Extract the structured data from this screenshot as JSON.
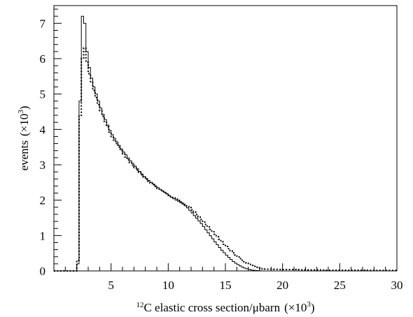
{
  "chart_data": {
    "type": "histogram",
    "title": "",
    "xlabel": {
      "pre_sup": "12",
      "text": "C elastic cross section/μbarn",
      "unit_prefix": "(×10",
      "unit_sup": "3",
      "unit_suffix": ")"
    },
    "ylabel": {
      "text": "events",
      "unit_prefix": "(×10",
      "unit_sup": "3",
      "unit_suffix": ")"
    },
    "xlim": [
      0,
      30
    ],
    "ylim": [
      0,
      7.5
    ],
    "xticks": [
      5,
      10,
      15,
      20,
      25,
      30
    ],
    "yticks": [
      0,
      1,
      2,
      3,
      4,
      5,
      6,
      7
    ],
    "grid": false,
    "legend": "none",
    "bin_width": 0.2,
    "series": [
      {
        "style": "solid",
        "color": "#000000",
        "points": [
          [
            0,
            0
          ],
          [
            2.0,
            0
          ],
          [
            2.1,
            0.2
          ],
          [
            2.2,
            2.4
          ],
          [
            2.3,
            4.8
          ],
          [
            2.4,
            6.9
          ],
          [
            2.5,
            7.2
          ],
          [
            2.6,
            7.2
          ],
          [
            2.7,
            7.0
          ],
          [
            2.8,
            6.6
          ],
          [
            2.9,
            6.2
          ],
          [
            3.0,
            5.9
          ],
          [
            3.2,
            5.6
          ],
          [
            3.4,
            5.3
          ],
          [
            3.6,
            5.1
          ],
          [
            3.8,
            4.9
          ],
          [
            4.0,
            4.7
          ],
          [
            4.2,
            4.5
          ],
          [
            4.4,
            4.35
          ],
          [
            4.6,
            4.2
          ],
          [
            4.8,
            4.05
          ],
          [
            5.0,
            3.9
          ],
          [
            5.2,
            3.8
          ],
          [
            5.4,
            3.7
          ],
          [
            5.6,
            3.6
          ],
          [
            5.8,
            3.5
          ],
          [
            6.0,
            3.4
          ],
          [
            6.3,
            3.28
          ],
          [
            6.6,
            3.15
          ],
          [
            7.0,
            3.0
          ],
          [
            7.4,
            2.85
          ],
          [
            7.8,
            2.7
          ],
          [
            8.2,
            2.58
          ],
          [
            8.6,
            2.48
          ],
          [
            9.0,
            2.38
          ],
          [
            9.4,
            2.28
          ],
          [
            9.8,
            2.2
          ],
          [
            10.2,
            2.1
          ],
          [
            10.6,
            2.02
          ],
          [
            11.0,
            1.95
          ],
          [
            11.4,
            1.87
          ],
          [
            11.8,
            1.75
          ],
          [
            12.2,
            1.6
          ],
          [
            12.6,
            1.45
          ],
          [
            13.0,
            1.3
          ],
          [
            13.4,
            1.12
          ],
          [
            13.8,
            0.95
          ],
          [
            14.2,
            0.78
          ],
          [
            14.6,
            0.62
          ],
          [
            15.0,
            0.48
          ],
          [
            15.4,
            0.35
          ],
          [
            15.8,
            0.24
          ],
          [
            16.2,
            0.16
          ],
          [
            16.6,
            0.09
          ],
          [
            17.0,
            0.05
          ],
          [
            17.4,
            0.02
          ],
          [
            17.8,
            0.01
          ],
          [
            18.2,
            0.0
          ],
          [
            30,
            0
          ]
        ]
      },
      {
        "style": "dotted",
        "color": "#000000",
        "points": [
          [
            0,
            0
          ],
          [
            2.0,
            0
          ],
          [
            2.1,
            0.3
          ],
          [
            2.2,
            2.0
          ],
          [
            2.3,
            4.4
          ],
          [
            2.4,
            5.6
          ],
          [
            2.5,
            6.0
          ],
          [
            2.6,
            6.2
          ],
          [
            2.7,
            6.3
          ],
          [
            2.8,
            6.1
          ],
          [
            2.9,
            5.9
          ],
          [
            3.0,
            5.7
          ],
          [
            3.2,
            5.45
          ],
          [
            3.4,
            5.2
          ],
          [
            3.6,
            5.0
          ],
          [
            3.8,
            4.8
          ],
          [
            4.0,
            4.6
          ],
          [
            4.2,
            4.45
          ],
          [
            4.4,
            4.3
          ],
          [
            4.6,
            4.15
          ],
          [
            4.8,
            4.0
          ],
          [
            5.0,
            3.85
          ],
          [
            5.2,
            3.75
          ],
          [
            5.4,
            3.65
          ],
          [
            5.6,
            3.55
          ],
          [
            5.8,
            3.45
          ],
          [
            6.0,
            3.35
          ],
          [
            6.3,
            3.22
          ],
          [
            6.6,
            3.1
          ],
          [
            7.0,
            2.95
          ],
          [
            7.4,
            2.82
          ],
          [
            7.8,
            2.68
          ],
          [
            8.2,
            2.56
          ],
          [
            8.6,
            2.46
          ],
          [
            9.0,
            2.36
          ],
          [
            9.4,
            2.27
          ],
          [
            9.8,
            2.2
          ],
          [
            10.2,
            2.12
          ],
          [
            10.6,
            2.05
          ],
          [
            11.0,
            1.97
          ],
          [
            11.4,
            1.9
          ],
          [
            11.8,
            1.82
          ],
          [
            12.2,
            1.7
          ],
          [
            12.6,
            1.56
          ],
          [
            13.0,
            1.42
          ],
          [
            13.4,
            1.28
          ],
          [
            13.8,
            1.14
          ],
          [
            14.2,
            1.0
          ],
          [
            14.6,
            0.86
          ],
          [
            15.0,
            0.72
          ],
          [
            15.4,
            0.6
          ],
          [
            15.8,
            0.48
          ],
          [
            16.2,
            0.37
          ],
          [
            16.6,
            0.28
          ],
          [
            17.0,
            0.2
          ],
          [
            17.4,
            0.14
          ],
          [
            17.8,
            0.09
          ],
          [
            18.2,
            0.06
          ],
          [
            18.6,
            0.05
          ],
          [
            19.0,
            0.05
          ],
          [
            20.0,
            0.04
          ],
          [
            21.0,
            0.04
          ],
          [
            22.0,
            0.03
          ],
          [
            23.0,
            0.03
          ],
          [
            24.0,
            0.02
          ],
          [
            25.0,
            0.02
          ],
          [
            26.0,
            0.02
          ],
          [
            27.0,
            0.02
          ],
          [
            28.0,
            0.015
          ],
          [
            29.0,
            0.015
          ],
          [
            30,
            0.015
          ]
        ]
      }
    ]
  }
}
